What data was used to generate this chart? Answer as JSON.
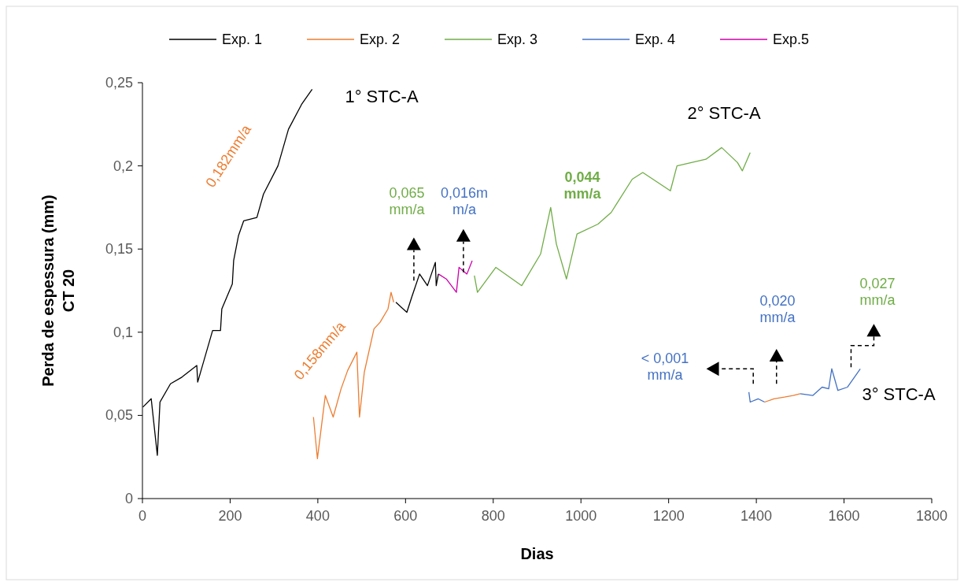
{
  "chart_data": {
    "type": "line",
    "xlabel": "Dias",
    "ylabel": "Perda de espessura (mm)\nCT 20",
    "xlim": [
      0,
      1800
    ],
    "ylim": [
      0,
      0.25
    ],
    "xticks": [
      0,
      200,
      400,
      600,
      800,
      1000,
      1200,
      1400,
      1600,
      1800
    ],
    "yticks": [
      {
        "value": 0,
        "label": "0"
      },
      {
        "value": 0.05,
        "label": "0,05"
      },
      {
        "value": 0.1,
        "label": "0,1"
      },
      {
        "value": 0.15,
        "label": "0,15"
      },
      {
        "value": 0.2,
        "label": "0,2"
      },
      {
        "value": 0.25,
        "label": "0,25"
      }
    ],
    "grid": false,
    "legend": "top",
    "marker": "none",
    "line_style": "solid",
    "series": [
      {
        "name": "Exp. 1",
        "color": "#000000",
        "x": [
          1,
          20,
          34,
          40,
          64,
          90,
          124,
          126,
          160,
          178,
          181,
          205,
          208,
          219,
          231,
          261,
          276,
          309,
          333,
          363,
          387
        ],
        "values": [
          0.055,
          0.06,
          0.026,
          0.058,
          0.069,
          0.073,
          0.08,
          0.07,
          0.101,
          0.101,
          0.114,
          0.129,
          0.143,
          0.158,
          0.167,
          0.169,
          0.183,
          0.2,
          0.222,
          0.237,
          0.246
        ]
      },
      {
        "name": "Exp. 2",
        "color": "#ed7d31",
        "x": [
          390,
          399,
          417,
          435,
          453,
          468,
          489,
          495,
          506,
          528,
          542,
          560,
          567,
          573
        ],
        "values": [
          0.049,
          0.024,
          0.062,
          0.049,
          0.066,
          0.077,
          0.088,
          0.049,
          0.076,
          0.102,
          0.106,
          0.114,
          0.124,
          0.118
        ]
      },
      {
        "name": "Exp. 3",
        "color": "#70ad47",
        "x": [
          757,
          764,
          806,
          865,
          908,
          931,
          944,
          967,
          991,
          1039,
          1069,
          1081,
          1117,
          1141,
          1204,
          1219,
          1285,
          1321,
          1357,
          1368,
          1386
        ],
        "values": [
          0.134,
          0.124,
          0.139,
          0.128,
          0.147,
          0.175,
          0.153,
          0.132,
          0.159,
          0.165,
          0.172,
          0.177,
          0.192,
          0.196,
          0.185,
          0.2,
          0.204,
          0.211,
          0.202,
          0.197,
          0.208
        ]
      },
      {
        "name": "Exp. 4",
        "color": "#4472c4",
        "x": [
          1383,
          1386,
          1404,
          1419
        ],
        "values": [
          0.064,
          0.058,
          0.06,
          0.058
        ]
      },
      {
        "name": "Exp.5",
        "color": "#cc00aa",
        "x": [
          675,
          693,
          716,
          722,
          740,
          752
        ],
        "values": [
          0.135,
          0.132,
          0.124,
          0.139,
          0.135,
          0.143
        ]
      },
      {
        "color": "#000000",
        "x": [
          578,
          603,
          614,
          632,
          650,
          668,
          670,
          675
        ],
        "values": [
          0.118,
          0.112,
          0.121,
          0.135,
          0.128,
          0.142,
          0.128,
          0.135
        ]
      },
      {
        "color": "#ed7d31",
        "x": [
          1419,
          1440,
          1464,
          1484,
          1500
        ],
        "values": [
          0.058,
          0.06,
          0.061,
          0.062,
          0.063
        ]
      },
      {
        "color": "#4472c4",
        "x": [
          1500,
          1529,
          1550,
          1565,
          1572,
          1586,
          1608,
          1637
        ],
        "values": [
          0.063,
          0.062,
          0.067,
          0.066,
          0.078,
          0.065,
          0.067,
          0.078
        ]
      }
    ],
    "annotations": [
      "0,182mm/a",
      "0,158mm/a",
      "0,065\nmm/a",
      "0,016m\nm/a",
      "0,044\nmm/a",
      "1° STC-A",
      "2° STC-A",
      "< 0,001\nmm/a",
      "0,020\nmm/a",
      "0,027\nmm/a",
      "3° STC-A"
    ]
  }
}
